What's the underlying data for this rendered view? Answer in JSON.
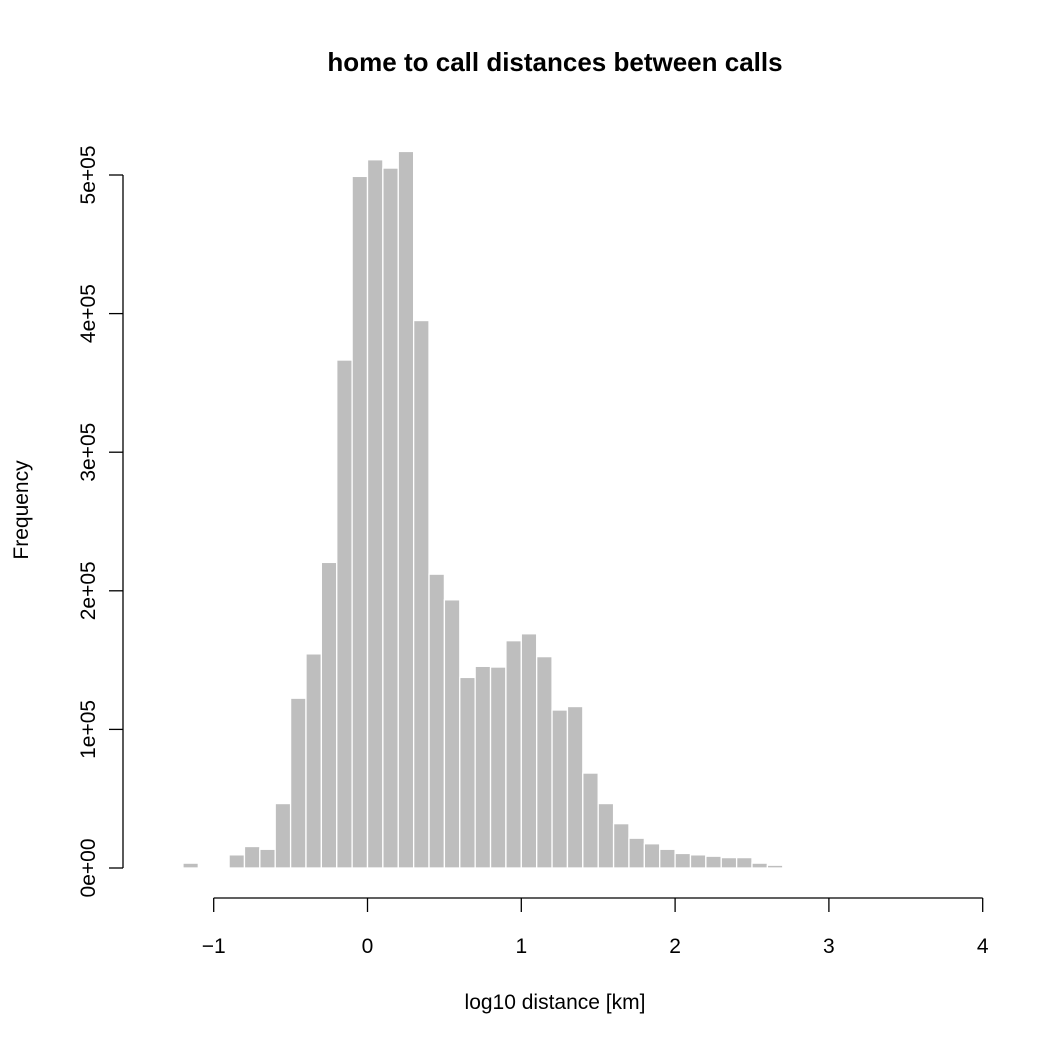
{
  "chart_data": {
    "type": "bar",
    "title": "home to call distances between calls",
    "xlabel": "log10 distance [km]",
    "ylabel": "Frequency",
    "xlim": [
      -1.2,
      4.0
    ],
    "ylim": [
      0,
      520000
    ],
    "x_ticks": [
      {
        "value": -1,
        "label": "−1"
      },
      {
        "value": 0,
        "label": "0"
      },
      {
        "value": 1,
        "label": "1"
      },
      {
        "value": 2,
        "label": "2"
      },
      {
        "value": 3,
        "label": "3"
      },
      {
        "value": 4,
        "label": "4"
      }
    ],
    "y_ticks": [
      {
        "value": 0,
        "label": "0e+00"
      },
      {
        "value": 100000,
        "label": "1e+05"
      },
      {
        "value": 200000,
        "label": "2e+05"
      },
      {
        "value": 300000,
        "label": "3e+05"
      },
      {
        "value": 400000,
        "label": "4e+05"
      },
      {
        "value": 500000,
        "label": "5e+05"
      }
    ],
    "bar_color": "#bebebe",
    "bin_width": 0.1,
    "bins": [
      {
        "x0": -1.2,
        "value": 3500
      },
      {
        "x0": -1.1,
        "value": 0
      },
      {
        "x0": -1.0,
        "value": 0
      },
      {
        "x0": -0.9,
        "value": 9500
      },
      {
        "x0": -0.8,
        "value": 15500
      },
      {
        "x0": -0.7,
        "value": 13500
      },
      {
        "x0": -0.6,
        "value": 46500
      },
      {
        "x0": -0.5,
        "value": 122500
      },
      {
        "x0": -0.4,
        "value": 154500
      },
      {
        "x0": -0.3,
        "value": 220500
      },
      {
        "x0": -0.2,
        "value": 366500
      },
      {
        "x0": -0.1,
        "value": 499000
      },
      {
        "x0": 0.0,
        "value": 511000
      },
      {
        "x0": 0.1,
        "value": 505000
      },
      {
        "x0": 0.2,
        "value": 517000
      },
      {
        "x0": 0.3,
        "value": 395000
      },
      {
        "x0": 0.4,
        "value": 212000
      },
      {
        "x0": 0.5,
        "value": 193500
      },
      {
        "x0": 0.6,
        "value": 137500
      },
      {
        "x0": 0.7,
        "value": 145500
      },
      {
        "x0": 0.8,
        "value": 145000
      },
      {
        "x0": 0.9,
        "value": 164000
      },
      {
        "x0": 1.0,
        "value": 169000
      },
      {
        "x0": 1.1,
        "value": 152500
      },
      {
        "x0": 1.2,
        "value": 114000
      },
      {
        "x0": 1.3,
        "value": 116500
      },
      {
        "x0": 1.4,
        "value": 68500
      },
      {
        "x0": 1.5,
        "value": 46500
      },
      {
        "x0": 1.6,
        "value": 32000
      },
      {
        "x0": 1.7,
        "value": 21500
      },
      {
        "x0": 1.8,
        "value": 17500
      },
      {
        "x0": 1.9,
        "value": 13500
      },
      {
        "x0": 2.0,
        "value": 10500
      },
      {
        "x0": 2.1,
        "value": 9500
      },
      {
        "x0": 2.2,
        "value": 8500
      },
      {
        "x0": 2.3,
        "value": 7500
      },
      {
        "x0": 2.4,
        "value": 7500
      },
      {
        "x0": 2.5,
        "value": 3500
      },
      {
        "x0": 2.6,
        "value": 2000
      }
    ]
  }
}
